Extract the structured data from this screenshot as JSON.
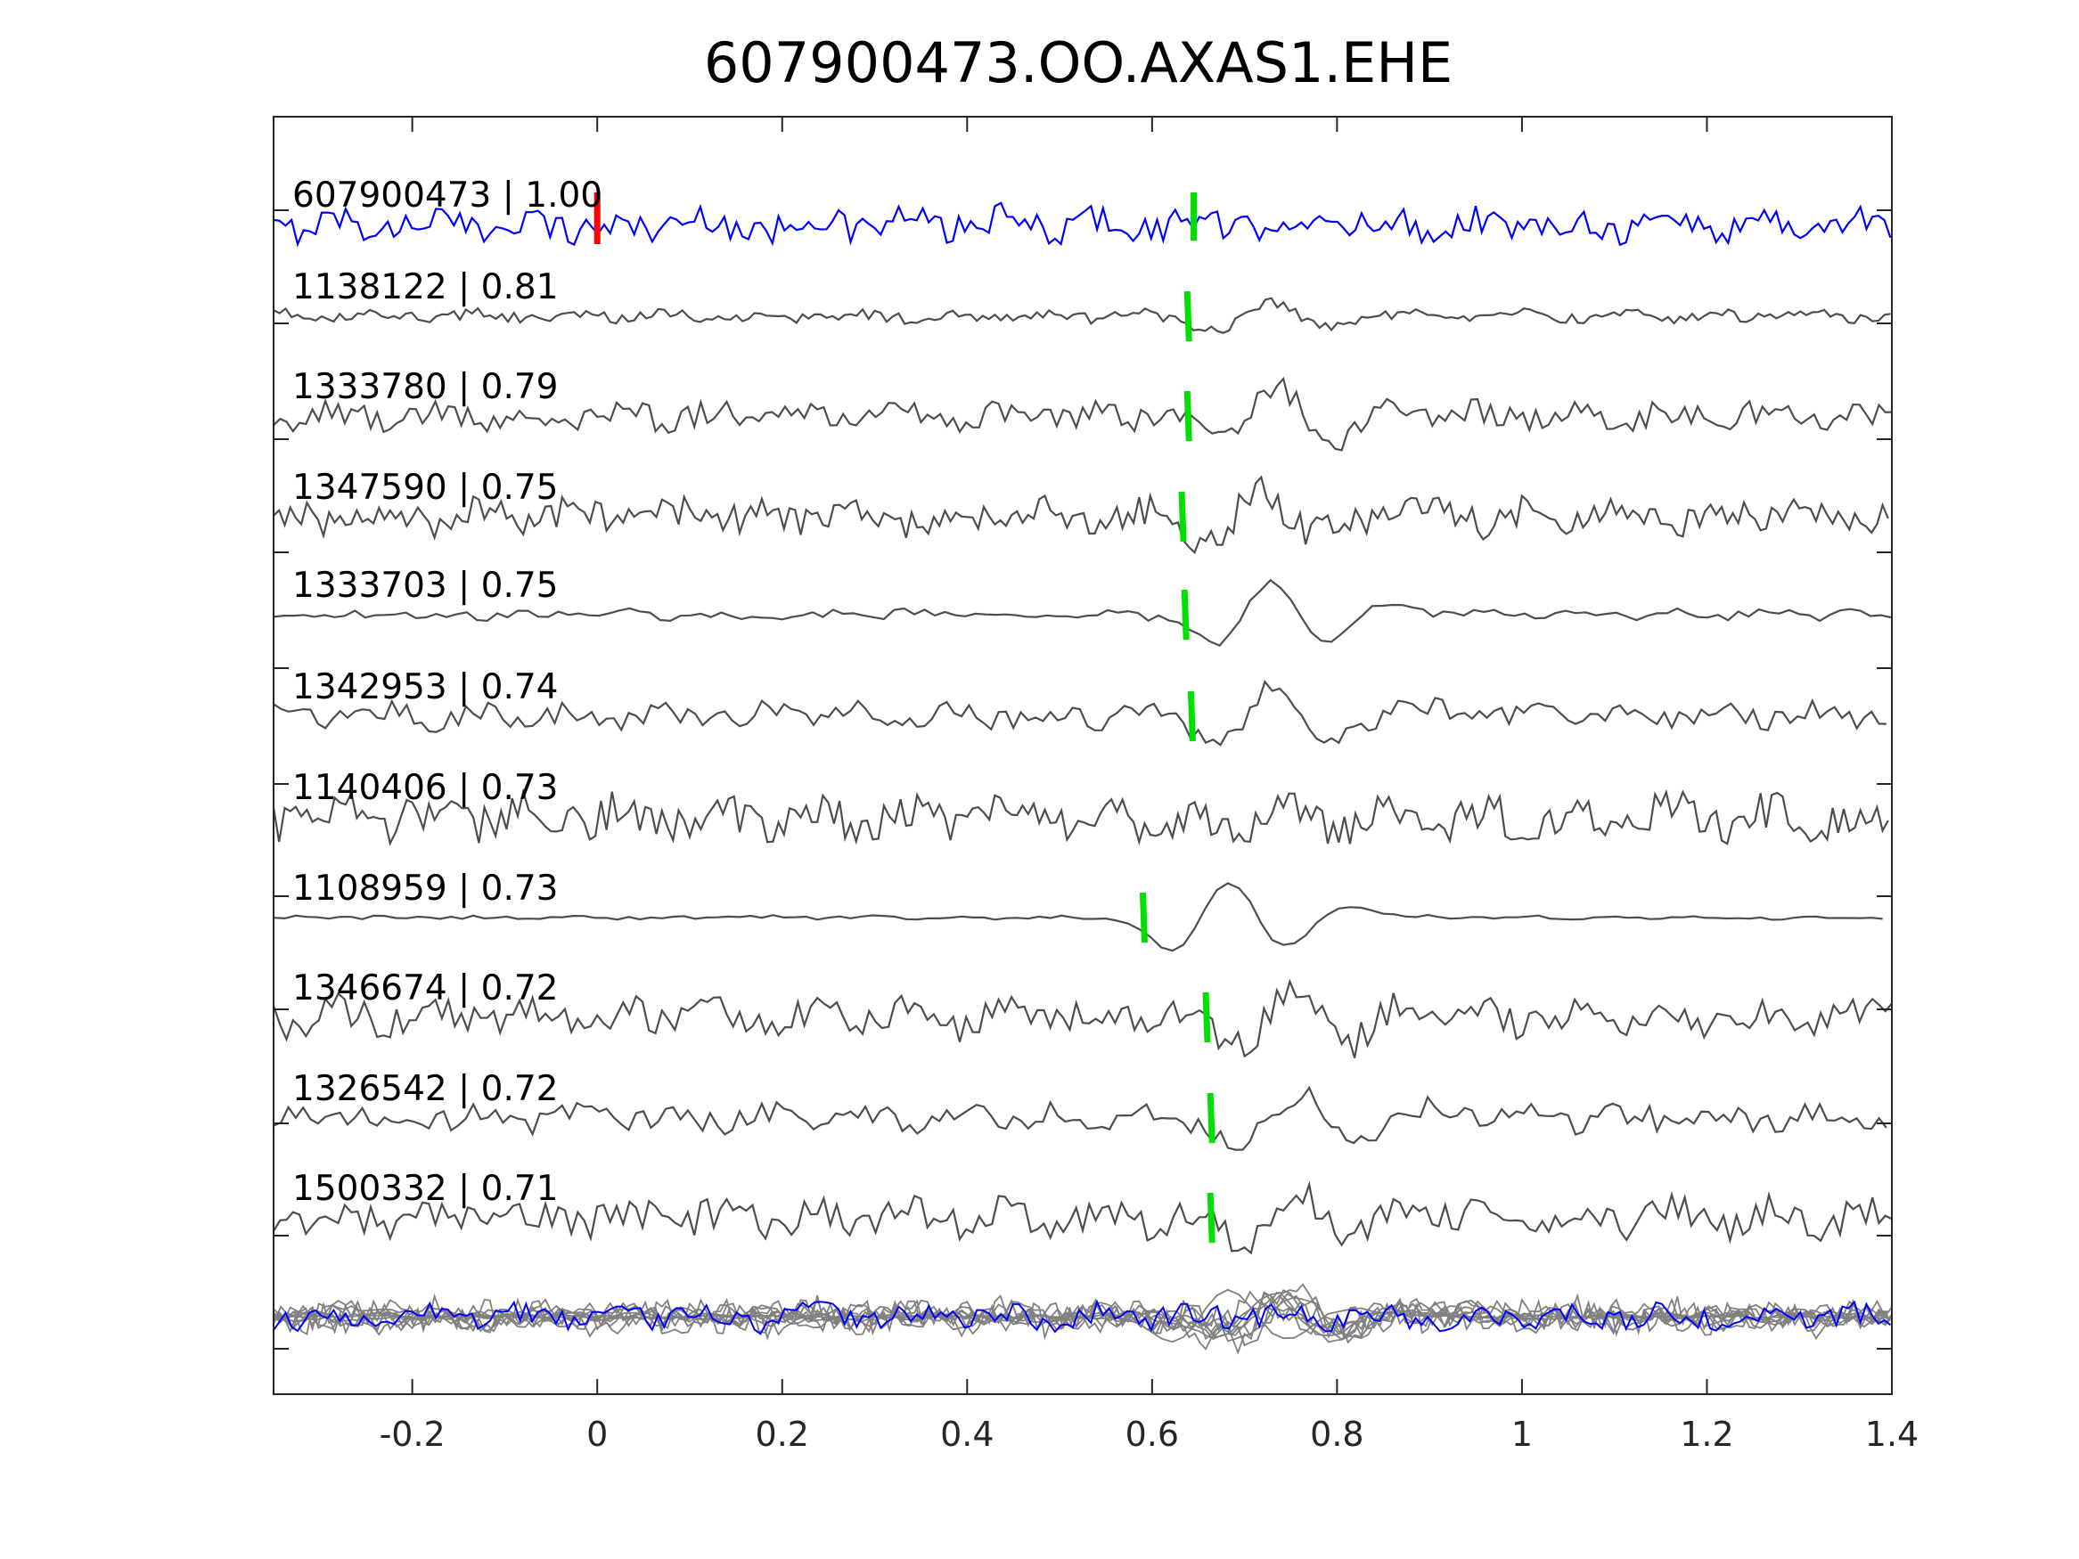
{
  "chart_data": {
    "type": "line",
    "title": "607900473.OO.AXAS1.EHE",
    "xlabel": "",
    "ylabel": "",
    "xlim": [
      -0.35,
      1.4
    ],
    "xticks": [
      "-0.2",
      "0",
      "0.2",
      "0.4",
      "0.6",
      "0.8",
      "1",
      "1.2",
      "1.4"
    ],
    "grid": false,
    "colors": {
      "template": "#0000ff",
      "neighbor": "#4d4d4d",
      "stack": "#808080",
      "pick_template": "#ff0000",
      "pick_neighbor": "#00e000",
      "axis": "#262626"
    },
    "series": [
      {
        "id": "607900473",
        "cc": "1.00",
        "label": "607900473 | 1.00",
        "role": "template",
        "pick": 0.0,
        "template_pick": 0.645
      },
      {
        "id": "1138122",
        "cc": "0.81",
        "label": "1138122 | 0.81",
        "role": "neighbor",
        "pick": 0.638
      },
      {
        "id": "1333780",
        "cc": "0.79",
        "label": "1333780 | 0.79",
        "role": "neighbor",
        "pick": 0.638
      },
      {
        "id": "1347590",
        "cc": "0.75",
        "label": "1347590 | 0.75",
        "role": "neighbor",
        "pick": 0.632
      },
      {
        "id": "1333703",
        "cc": "0.75",
        "label": "1333703 | 0.75",
        "role": "neighbor",
        "pick": 0.635
      },
      {
        "id": "1342953",
        "cc": "0.74",
        "label": "1342953 | 0.74",
        "role": "neighbor",
        "pick": 0.642
      },
      {
        "id": "1140406",
        "cc": "0.73",
        "label": "1140406 | 0.73",
        "role": "neighbor",
        "pick": null
      },
      {
        "id": "1108959",
        "cc": "0.73",
        "label": "1108959 | 0.73",
        "role": "neighbor",
        "pick": 0.59
      },
      {
        "id": "1346674",
        "cc": "0.72",
        "label": "1346674 | 0.72",
        "role": "neighbor",
        "pick": 0.658
      },
      {
        "id": "1326542",
        "cc": "0.72",
        "label": "1326542 | 0.72",
        "role": "neighbor",
        "pick": 0.663
      },
      {
        "id": "1500332",
        "cc": "0.71",
        "label": "1500332 | 0.71",
        "role": "neighbor",
        "pick": 0.663
      }
    ],
    "stack": {
      "description_type": "overlay of all traces",
      "position": "bottom"
    }
  }
}
